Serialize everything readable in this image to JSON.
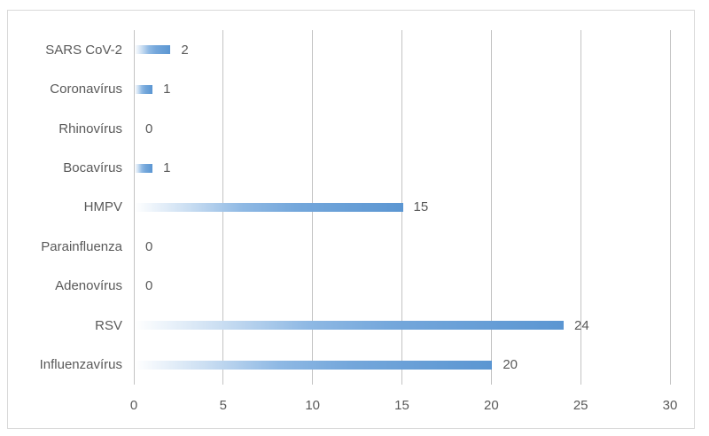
{
  "chart_data": {
    "type": "bar",
    "orientation": "horizontal",
    "categories": [
      "SARS CoV-2",
      "Coronavírus",
      "Rhinovírus",
      "Bocavírus",
      "HMPV",
      "Parainfluenza",
      "Adenovírus",
      "RSV",
      "Influenzavírus"
    ],
    "values": [
      2,
      1,
      0,
      1,
      15,
      0,
      0,
      24,
      20
    ],
    "title": "",
    "xlabel": "",
    "ylabel": "",
    "xlim": [
      0,
      30
    ],
    "xticks": [
      0,
      5,
      10,
      15,
      20,
      25,
      30
    ],
    "grid": true,
    "legend": false,
    "bar_gradient_start": "#ffffff",
    "bar_gradient_mid": "#8fb9e4",
    "bar_gradient_end": "#5b96d2",
    "gridline_color": "#c3c3c3",
    "border_color": "#d9d9d9",
    "text_color": "#595959"
  }
}
